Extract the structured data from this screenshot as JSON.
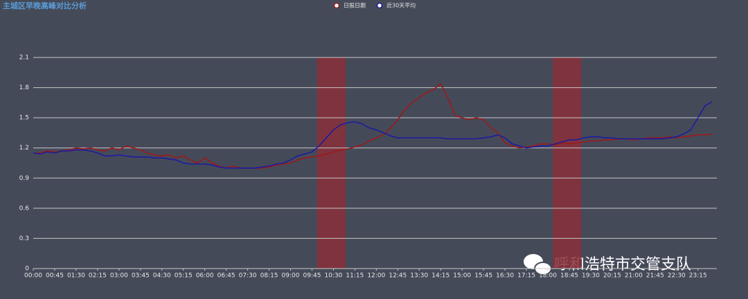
{
  "chart_data": {
    "type": "line",
    "title": "主城区早晚高峰对比分析",
    "categories": [
      "00:00",
      null,
      null,
      "00:45",
      null,
      null,
      "01:30",
      null,
      null,
      "02:15",
      null,
      null,
      "03:00",
      null,
      null,
      "03:45",
      null,
      null,
      "04:30",
      null,
      null,
      "05:15",
      null,
      null,
      "06:00",
      null,
      null,
      "06:45",
      null,
      null,
      "07:30",
      null,
      null,
      "08:15",
      null,
      null,
      "09:00",
      null,
      null,
      "09:45",
      null,
      null,
      "10:30",
      null,
      null,
      "11:15",
      null,
      null,
      "12:00",
      null,
      null,
      "12:45",
      null,
      null,
      "13:30",
      null,
      null,
      "14:15",
      null,
      null,
      "15:00",
      null,
      null,
      "15:45",
      null,
      null,
      "16:30",
      null,
      null,
      "17:15",
      null,
      null,
      "18:00",
      null,
      null,
      "18:45",
      null,
      null,
      "19:30",
      null,
      null,
      "20:15",
      null,
      null,
      "21:00",
      null,
      null,
      "21:45",
      null,
      null,
      "22:30",
      null,
      null,
      "23:15",
      null,
      null
    ],
    "series": [
      {
        "name": "日报日期",
        "color": "#9b1a1a",
        "values": [
          1.15,
          1.15,
          1.17,
          1.16,
          1.17,
          1.18,
          1.2,
          1.19,
          1.2,
          1.18,
          1.17,
          1.2,
          1.18,
          1.22,
          1.2,
          1.18,
          1.15,
          1.13,
          1.12,
          1.13,
          1.1,
          1.12,
          1.08,
          1.05,
          1.1,
          1.05,
          1.02,
          1.0,
          1.02,
          1.0,
          1.0,
          1.0,
          1.0,
          1.01,
          1.03,
          1.04,
          1.05,
          1.08,
          1.1,
          1.11,
          1.12,
          1.14,
          1.16,
          1.18,
          1.19,
          1.21,
          1.23,
          1.27,
          1.3,
          1.33,
          1.4,
          1.48,
          1.58,
          1.65,
          1.7,
          1.75,
          1.78,
          1.84,
          1.7,
          1.52,
          1.5,
          1.48,
          1.5,
          1.48,
          1.4,
          1.35,
          1.25,
          1.22,
          1.2,
          1.21,
          1.22,
          1.24,
          1.24,
          1.23,
          1.25,
          1.24,
          1.25,
          1.26,
          1.27,
          1.27,
          1.28,
          1.28,
          1.29,
          1.29,
          1.28,
          1.29,
          1.3,
          1.3,
          1.3,
          1.31,
          1.3,
          1.31,
          1.32,
          1.33,
          1.33,
          1.34
        ]
      },
      {
        "name": "近30天平均",
        "color": "#1c1c9e",
        "values": [
          1.15,
          1.14,
          1.16,
          1.15,
          1.17,
          1.17,
          1.18,
          1.18,
          1.17,
          1.15,
          1.12,
          1.12,
          1.13,
          1.12,
          1.11,
          1.11,
          1.11,
          1.1,
          1.1,
          1.09,
          1.08,
          1.05,
          1.04,
          1.04,
          1.04,
          1.03,
          1.01,
          1.0,
          1.0,
          1.0,
          1.0,
          1.0,
          1.01,
          1.02,
          1.04,
          1.05,
          1.08,
          1.12,
          1.14,
          1.16,
          1.22,
          1.3,
          1.38,
          1.43,
          1.45,
          1.46,
          1.44,
          1.4,
          1.38,
          1.35,
          1.32,
          1.3,
          1.3,
          1.3,
          1.3,
          1.3,
          1.3,
          1.3,
          1.29,
          1.29,
          1.29,
          1.29,
          1.29,
          1.3,
          1.31,
          1.33,
          1.3,
          1.24,
          1.22,
          1.2,
          1.21,
          1.22,
          1.22,
          1.24,
          1.26,
          1.28,
          1.28,
          1.3,
          1.31,
          1.31,
          1.3,
          1.3,
          1.29,
          1.29,
          1.29,
          1.29,
          1.29,
          1.29,
          1.29,
          1.3,
          1.31,
          1.34,
          1.38,
          1.5,
          1.62,
          1.66
        ]
      }
    ],
    "highlight_index_ranges": [
      [
        39.7,
        43.7
      ],
      [
        72.7,
        76.7
      ]
    ],
    "highlight_color": "#8a2f3a",
    "ylim": [
      0,
      2.1
    ],
    "yticks": [
      0,
      0.3,
      0.6,
      0.9,
      1.2,
      1.5,
      1.8,
      2.1
    ],
    "grid": true,
    "annotations": [
      "呼和浩特市交管支队"
    ]
  }
}
